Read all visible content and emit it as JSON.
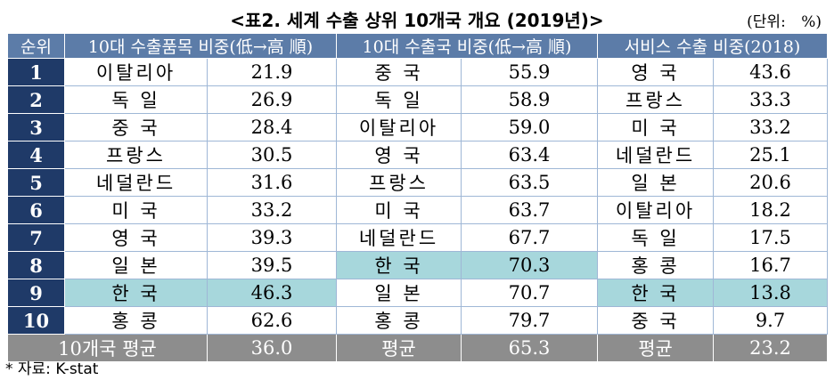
{
  "title": "<표2. 세계 수출 상위 10개국 개요 (2019년)>",
  "unit": "(단위: %)",
  "table": {
    "header": [
      "순위",
      "10대 수출품목 비중(低→高 順)",
      "10대 수출국 비중(低→高 順)",
      "서비스 수출 비중(2018)"
    ],
    "rows": [
      [
        "1",
        "이탈리아",
        "21.9",
        "중 국",
        "55.9",
        "영 국",
        "43.6"
      ],
      [
        "2",
        "독 일",
        "26.9",
        "독 일",
        "58.9",
        "프랑스",
        "33.3"
      ],
      [
        "3",
        "중 국",
        "28.4",
        "이탈리아",
        "59.0",
        "미 국",
        "33.2"
      ],
      [
        "4",
        "프랑스",
        "30.5",
        "영 국",
        "63.4",
        "네덜란드",
        "25.1"
      ],
      [
        "5",
        "네덜란드",
        "31.6",
        "프랑스",
        "63.5",
        "일 본",
        "20.6"
      ],
      [
        "6",
        "미 국",
        "33.2",
        "미 국",
        "63.7",
        "이탈리아",
        "18.2"
      ],
      [
        "7",
        "영 국",
        "39.3",
        "네덜란드",
        "67.7",
        "독 일",
        "17.5"
      ],
      [
        "8",
        "일 본",
        "39.5",
        "한 국",
        "70.3",
        "홍 콩",
        "16.7"
      ],
      [
        "9",
        "한 국",
        "46.3",
        "일 본",
        "70.7",
        "한 국",
        "13.8"
      ],
      [
        "10",
        "홍 콩",
        "62.6",
        "홍 콩",
        "79.7",
        "중 국",
        "9.7"
      ]
    ],
    "footer": [
      "10개국 평균",
      "36.0",
      "평균",
      "65.3",
      "평균",
      "23.2"
    ],
    "highlight_label": "한 국"
  },
  "source": "* 자료: K-stat"
}
